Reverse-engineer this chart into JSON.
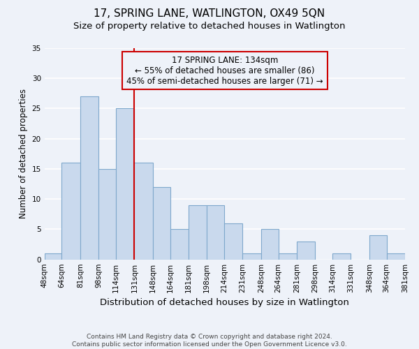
{
  "title": "17, SPRING LANE, WATLINGTON, OX49 5QN",
  "subtitle": "Size of property relative to detached houses in Watlington",
  "xlabel": "Distribution of detached houses by size in Watlington",
  "ylabel": "Number of detached properties",
  "bin_edges": [
    48,
    64,
    81,
    98,
    114,
    131,
    148,
    164,
    181,
    198,
    214,
    231,
    248,
    264,
    281,
    298,
    314,
    331,
    348,
    364,
    381
  ],
  "bar_heights": [
    1,
    16,
    27,
    15,
    25,
    16,
    12,
    5,
    9,
    9,
    6,
    1,
    5,
    1,
    3,
    0,
    1,
    0,
    4,
    1
  ],
  "bar_color": "#c9d9ed",
  "bar_edgecolor": "#7fa8cc",
  "vline_x": 131,
  "vline_color": "#cc0000",
  "ylim": [
    0,
    35
  ],
  "yticks": [
    0,
    5,
    10,
    15,
    20,
    25,
    30,
    35
  ],
  "annotation_lines": [
    "17 SPRING LANE: 134sqm",
    "← 55% of detached houses are smaller (86)",
    "45% of semi-detached houses are larger (71) →"
  ],
  "annotation_box_edgecolor": "#cc0000",
  "footer_line1": "Contains HM Land Registry data © Crown copyright and database right 2024.",
  "footer_line2": "Contains public sector information licensed under the Open Government Licence v3.0.",
  "background_color": "#eef2f9",
  "grid_color": "#ffffff",
  "title_fontsize": 11,
  "subtitle_fontsize": 9.5,
  "xlabel_fontsize": 9.5,
  "ylabel_fontsize": 8.5,
  "tick_label_fontsize": 7.5,
  "annotation_fontsize": 8.5,
  "footer_fontsize": 6.5
}
